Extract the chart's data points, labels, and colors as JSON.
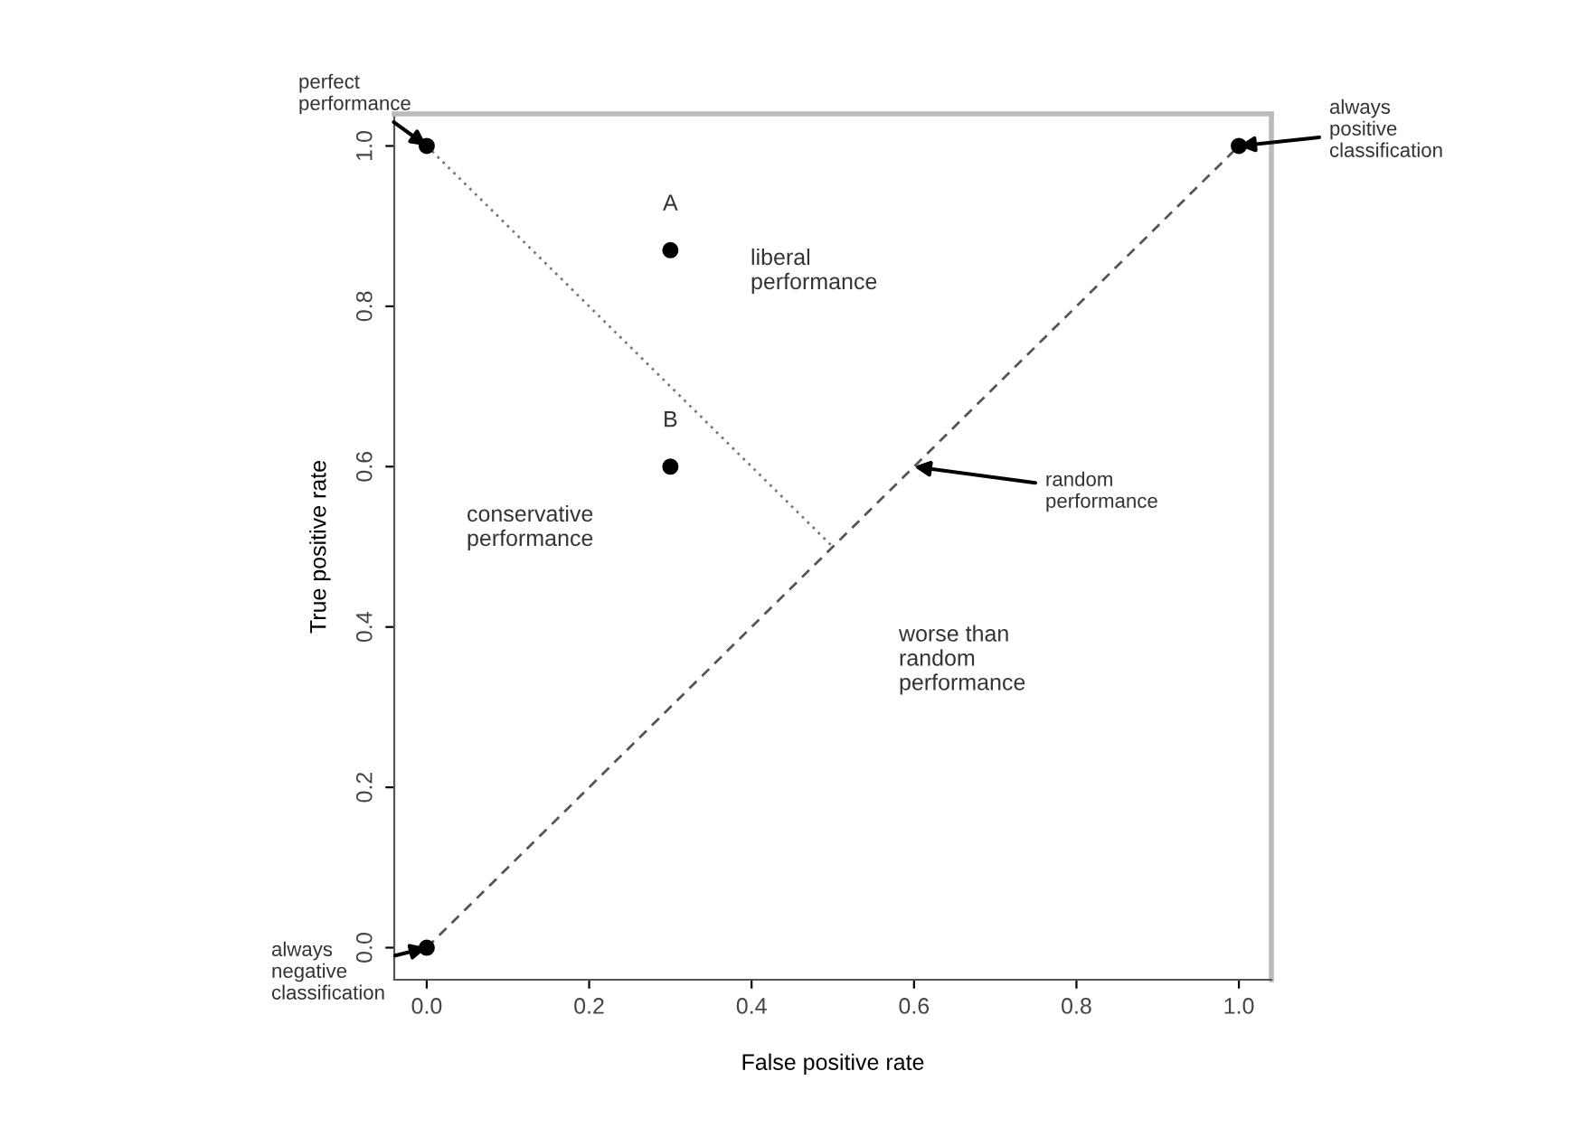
{
  "chart_data": {
    "type": "scatter",
    "xlabel": "False positive rate",
    "ylabel": "True positive rate",
    "xlim": [
      -0.04,
      1.04
    ],
    "ylim": [
      -0.04,
      1.04
    ],
    "xticks": [
      {
        "value": 0,
        "label": "0.0"
      },
      {
        "value": 0.2,
        "label": "0.2"
      },
      {
        "value": 0.4,
        "label": "0.4"
      },
      {
        "value": 0.6,
        "label": "0.6"
      },
      {
        "value": 0.8,
        "label": "0.8"
      },
      {
        "value": 1,
        "label": "1.0"
      }
    ],
    "yticks": [
      {
        "value": 0,
        "label": "0.0"
      },
      {
        "value": 0.2,
        "label": "0.2"
      },
      {
        "value": 0.4,
        "label": "0.4"
      },
      {
        "value": 0.6,
        "label": "0.6"
      },
      {
        "value": 0.8,
        "label": "0.8"
      },
      {
        "value": 1,
        "label": "1.0"
      }
    ],
    "series": [
      {
        "type": "line",
        "x": [
          0,
          1
        ],
        "values": [
          0,
          1
        ],
        "color": "#555555",
        "line_style": "dashed"
      },
      {
        "type": "line",
        "x": [
          0,
          0.5
        ],
        "values": [
          1,
          0.5
        ],
        "color": "#777777",
        "line_style": "dotted"
      },
      {
        "x": [
          0,
          0.3,
          0.3,
          1,
          0
        ],
        "values": [
          1,
          0.87,
          0.6,
          1,
          0
        ],
        "color": "#000000",
        "marker": "circle"
      }
    ],
    "annotations": [
      {
        "text": "perfect\nperformance",
        "x": 0,
        "y": 1
      },
      {
        "text": "always\npositive\nclassification",
        "x": 1,
        "y": 1
      },
      {
        "text": "always\nnegative\nclassification",
        "x": 0,
        "y": 0
      },
      {
        "text": "random\nperformance",
        "x": 0.6,
        "y": 0.6
      },
      {
        "text": "A",
        "x": 0.3,
        "y": 0.87
      },
      {
        "text": "B",
        "x": 0.3,
        "y": 0.6
      },
      "liberal\nperformance",
      "conservative\nperformance",
      "worse than\nrandom\nperformance"
    ]
  }
}
